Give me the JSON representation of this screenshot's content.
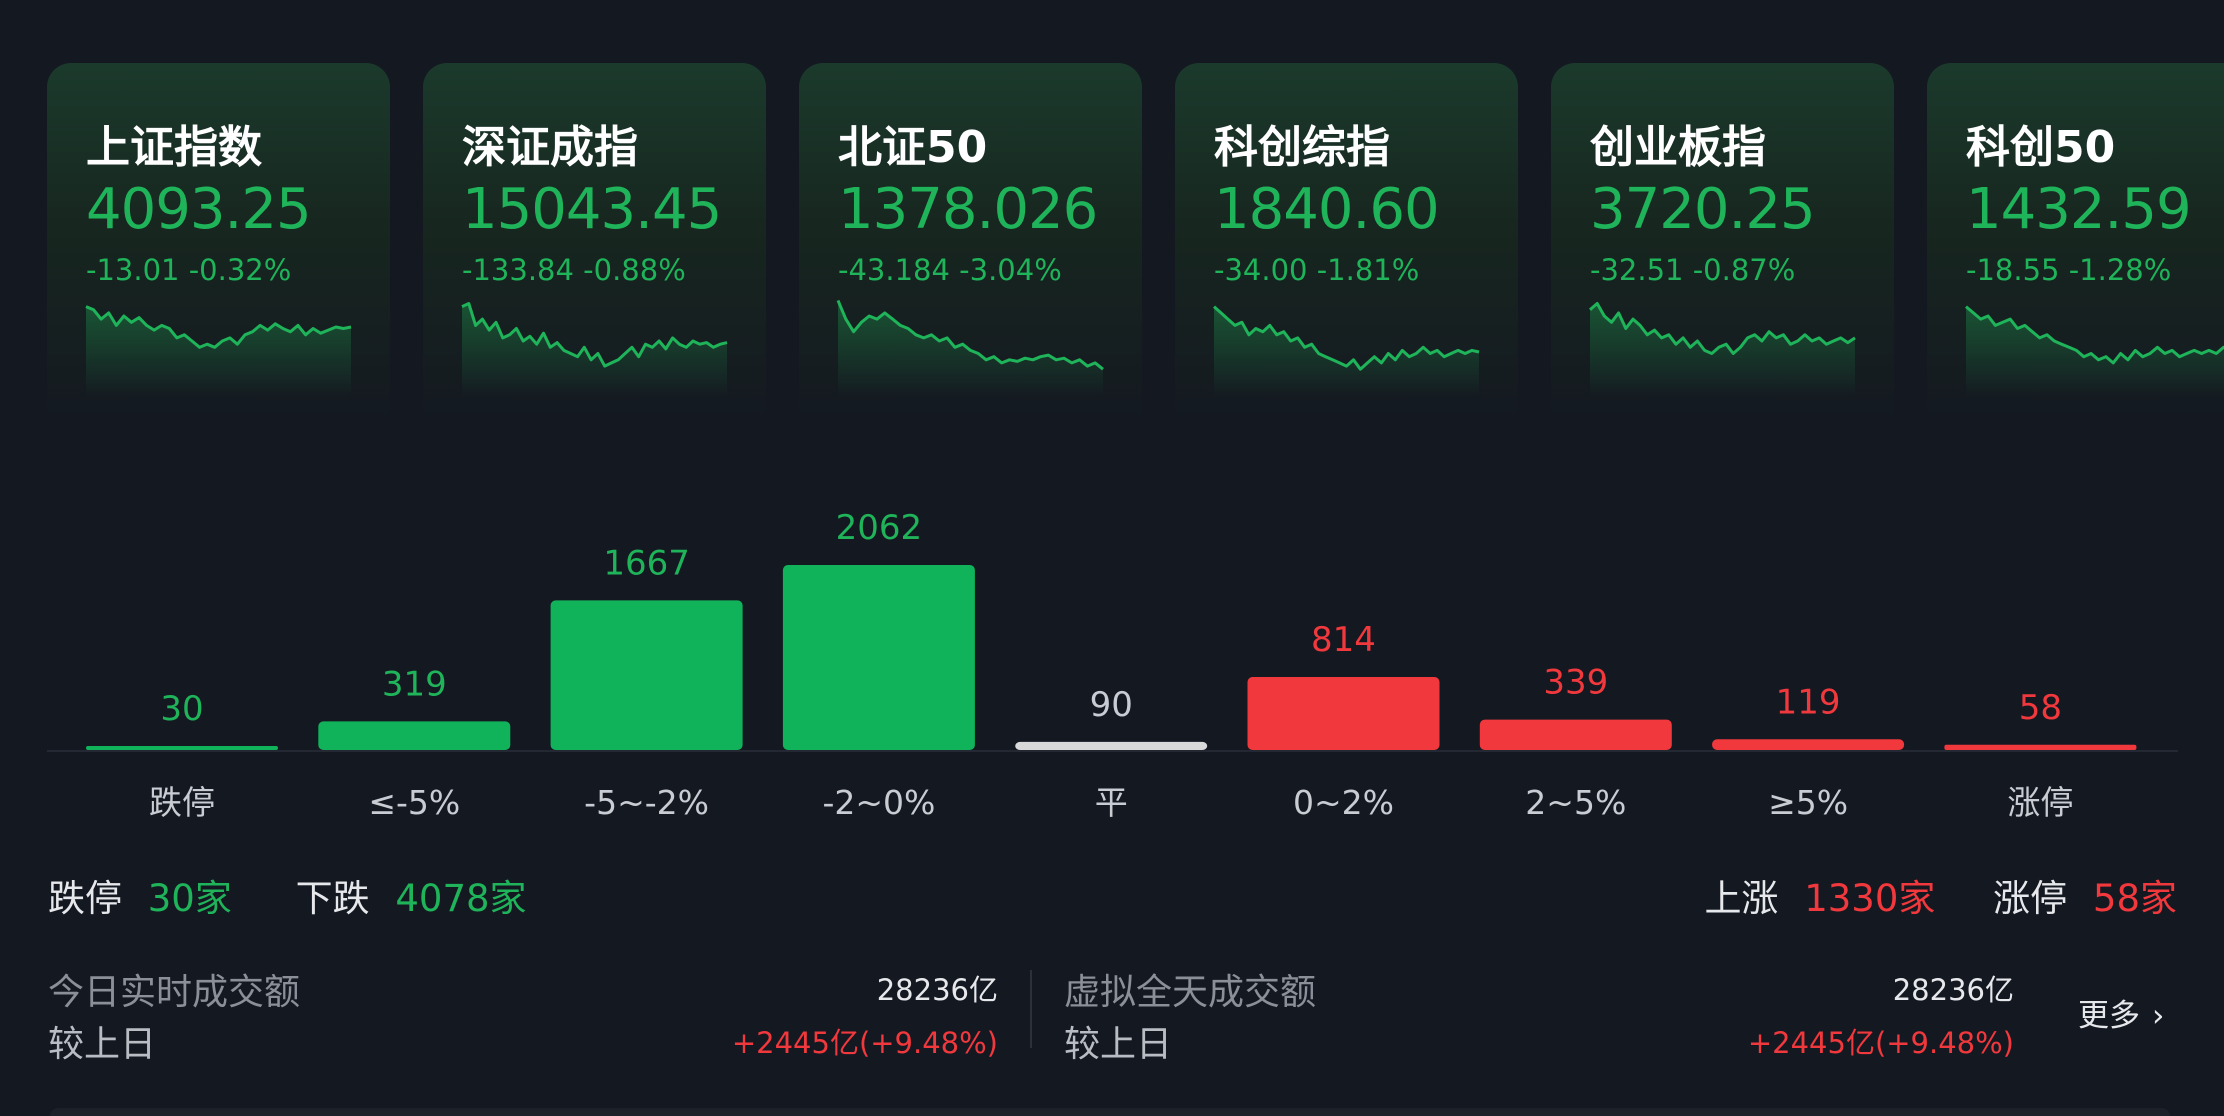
{
  "indices": [
    {
      "name": "上证指数",
      "value": "4093.25",
      "change": "-13.01",
      "pct": "-0.32%",
      "color": "#1fb35a",
      "spark": [
        40,
        42,
        48,
        44,
        52,
        46,
        50,
        47,
        52,
        55,
        52,
        54,
        60,
        58,
        62,
        66,
        64,
        66,
        62,
        60,
        64,
        58,
        56,
        52,
        55,
        51,
        54,
        56,
        52,
        58,
        54,
        57,
        55,
        53,
        54,
        53
      ]
    },
    {
      "name": "深证成指",
      "value": "15043.45",
      "change": "-133.84",
      "pct": "-0.88%",
      "color": "#1fb35a",
      "spark": [
        40,
        38,
        52,
        48,
        55,
        50,
        60,
        58,
        54,
        62,
        59,
        64,
        57,
        66,
        63,
        68,
        70,
        72,
        66,
        74,
        70,
        78,
        76,
        74,
        70,
        66,
        72,
        64,
        66,
        62,
        67,
        60,
        64,
        66,
        62,
        64,
        63,
        66,
        64,
        63
      ]
    },
    {
      "name": "北证50",
      "value": "1378.026",
      "change": "-43.184",
      "pct": "-3.04%",
      "color": "#1fb35a",
      "spark": [
        36,
        48,
        56,
        50,
        46,
        48,
        44,
        48,
        52,
        54,
        58,
        60,
        58,
        62,
        60,
        66,
        64,
        68,
        70,
        74,
        72,
        76,
        74,
        75,
        73,
        74,
        72,
        71,
        74,
        73,
        76,
        74,
        78,
        76,
        80
      ]
    },
    {
      "name": "科创综指",
      "value": "1840.60",
      "change": "-34.00",
      "pct": "-1.81%",
      "color": "#1fb35a",
      "spark": [
        40,
        44,
        48,
        52,
        50,
        58,
        54,
        56,
        52,
        58,
        56,
        62,
        60,
        66,
        64,
        70,
        72,
        74,
        76,
        78,
        74,
        80,
        76,
        72,
        76,
        70,
        74,
        68,
        72,
        70,
        66,
        70,
        68,
        72,
        70,
        68,
        70,
        68,
        69
      ]
    },
    {
      "name": "创业板指",
      "value": "3720.25",
      "change": "-32.51",
      "pct": "-0.87%",
      "color": "#1fb35a",
      "spark": [
        42,
        38,
        46,
        50,
        44,
        54,
        48,
        52,
        58,
        55,
        60,
        58,
        64,
        60,
        66,
        62,
        68,
        70,
        66,
        64,
        70,
        66,
        60,
        58,
        62,
        56,
        60,
        58,
        64,
        62,
        58,
        62,
        60,
        64,
        62,
        60,
        63,
        60
      ]
    },
    {
      "name": "科创50",
      "value": "1432.59",
      "change": "-18.55",
      "pct": "-1.28%",
      "color": "#1fb35a",
      "spark": [
        40,
        44,
        48,
        46,
        52,
        50,
        48,
        54,
        52,
        56,
        60,
        58,
        62,
        64,
        66,
        68,
        72,
        70,
        74,
        72,
        76,
        70,
        74,
        68,
        72,
        70,
        66,
        70,
        68,
        72,
        70,
        68,
        70,
        68,
        70,
        66,
        68
      ]
    }
  ],
  "chart_data": {
    "type": "bar",
    "categories": [
      "跌停",
      "≤-5%",
      "-5~-2%",
      "-2~0%",
      "平",
      "0~2%",
      "2~5%",
      "≥5%",
      "涨停"
    ],
    "values": [
      30,
      319,
      1667,
      2062,
      90,
      814,
      339,
      119,
      58
    ],
    "colors": [
      "#10b35a",
      "#10b35a",
      "#10b35a",
      "#10b35a",
      "#d9d9d9",
      "#f0383d",
      "#f0383d",
      "#f0383d",
      "#f0383d"
    ],
    "label_colors": [
      "#1fb35a",
      "#1fb35a",
      "#1fb35a",
      "#1fb35a",
      "#c9ccd2",
      "#f0383d",
      "#f0383d",
      "#f0383d",
      "#f0383d"
    ]
  },
  "summary": {
    "limit_down_label": "跌停",
    "limit_down_value": "30家",
    "down_label": "下跌",
    "down_value": "4078家",
    "up_label": "上涨",
    "up_value": "1330家",
    "limit_up_label": "涨停",
    "limit_up_value": "58家"
  },
  "turnover": {
    "today_label": "今日实时成交额",
    "today_value": "28236亿",
    "today_cmp_label": "较上日",
    "today_cmp_value": "+2445亿(+9.48%)",
    "virtual_label": "虚拟全天成交额",
    "virtual_value": "28236亿",
    "virtual_cmp_label": "较上日",
    "virtual_cmp_value": "+2445亿(+9.48%)",
    "more_label": "更多"
  },
  "colors": {
    "background": "#141821",
    "down": "#1fb35a",
    "up": "#f0383d",
    "flat": "#d9d9d9"
  }
}
